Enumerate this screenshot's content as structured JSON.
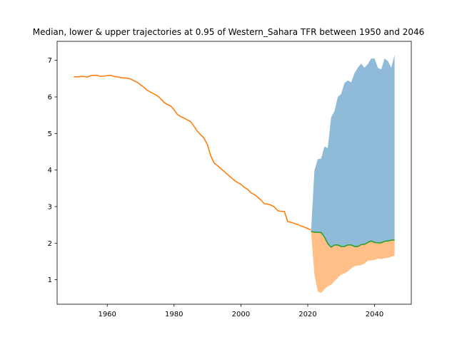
{
  "chart_data": {
    "type": "area",
    "title": "Median, lower & upper trajectories at 0.95 of Western_Sahara TFR between 1950 and 2046",
    "xlabel": "",
    "ylabel": "",
    "xlim": [
      1945,
      2051
    ],
    "ylim": [
      0.33,
      7.52
    ],
    "xticks": [
      1960,
      1980,
      2000,
      2020,
      2040
    ],
    "yticks": [
      1,
      2,
      3,
      4,
      5,
      6,
      7
    ],
    "grid": false,
    "legend": "none",
    "colors": {
      "historical": "#ff7f0e",
      "median": "#2ca02c",
      "upper_fill": "#1f77b4",
      "lower_fill": "#ff7f0e"
    },
    "historical": {
      "x": [
        1950,
        1951,
        1952,
        1953,
        1954,
        1955,
        1956,
        1957,
        1958,
        1959,
        1960,
        1961,
        1962,
        1963,
        1964,
        1965,
        1966,
        1967,
        1968,
        1969,
        1970,
        1971,
        1972,
        1973,
        1974,
        1975,
        1976,
        1977,
        1978,
        1979,
        1980,
        1981,
        1982,
        1983,
        1984,
        1985,
        1986,
        1987,
        1988,
        1989,
        1990,
        1991,
        1992,
        1993,
        1994,
        1995,
        1996,
        1997,
        1998,
        1999,
        2000,
        2001,
        2002,
        2003,
        2004,
        2005,
        2006,
        2007,
        2008,
        2009,
        2010,
        2011,
        2012,
        2013,
        2014,
        2015,
        2016,
        2017,
        2018,
        2019,
        2020,
        2021
      ],
      "y": [
        6.55,
        6.55,
        6.56,
        6.56,
        6.54,
        6.58,
        6.59,
        6.59,
        6.56,
        6.57,
        6.58,
        6.59,
        6.56,
        6.55,
        6.53,
        6.52,
        6.51,
        6.49,
        6.44,
        6.4,
        6.33,
        6.26,
        6.18,
        6.13,
        6.08,
        6.03,
        5.95,
        5.85,
        5.79,
        5.75,
        5.65,
        5.52,
        5.46,
        5.42,
        5.37,
        5.32,
        5.19,
        5.06,
        4.96,
        4.87,
        4.69,
        4.38,
        4.19,
        4.12,
        4.04,
        3.96,
        3.88,
        3.8,
        3.72,
        3.66,
        3.61,
        3.53,
        3.47,
        3.38,
        3.33,
        3.26,
        3.18,
        3.08,
        3.07,
        3.04,
        2.99,
        2.89,
        2.87,
        2.87,
        2.59,
        2.57,
        2.54,
        2.51,
        2.47,
        2.44,
        2.4,
        2.36
      ]
    },
    "projection": {
      "x": [
        2021,
        2022,
        2023,
        2024,
        2025,
        2026,
        2027,
        2028,
        2029,
        2030,
        2031,
        2032,
        2033,
        2034,
        2035,
        2036,
        2037,
        2038,
        2039,
        2040,
        2041,
        2042,
        2043,
        2044,
        2045,
        2046
      ],
      "median": [
        2.32,
        2.3,
        2.3,
        2.29,
        2.17,
        1.99,
        1.89,
        1.95,
        1.95,
        1.91,
        1.91,
        1.95,
        1.95,
        1.91,
        1.91,
        1.96,
        1.97,
        2.02,
        2.06,
        2.02,
        2.01,
        2.01,
        2.05,
        2.06,
        2.08,
        2.09
      ],
      "upper": [
        2.32,
        3.98,
        4.3,
        4.31,
        4.64,
        4.6,
        5.44,
        5.61,
        6.0,
        6.08,
        6.38,
        6.45,
        6.4,
        6.65,
        6.8,
        6.91,
        6.8,
        6.9,
        7.05,
        7.05,
        6.8,
        6.75,
        7.05,
        6.98,
        6.8,
        7.15
      ],
      "lower": [
        2.32,
        1.15,
        0.68,
        0.64,
        0.74,
        0.82,
        0.86,
        0.96,
        1.05,
        1.14,
        1.17,
        1.23,
        1.31,
        1.37,
        1.39,
        1.4,
        1.44,
        1.52,
        1.53,
        1.54,
        1.58,
        1.56,
        1.59,
        1.6,
        1.63,
        1.66
      ]
    }
  }
}
